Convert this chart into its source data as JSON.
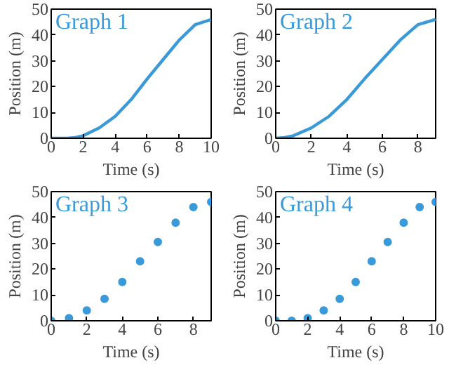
{
  "chart_data": [
    {
      "type": "line",
      "title": "Graph 1",
      "xlabel": "Time (s)",
      "ylabel": "Position (m)",
      "x": [
        0,
        1,
        1.5,
        2,
        3,
        4,
        5,
        6,
        7,
        8,
        9,
        10
      ],
      "series": [
        {
          "color": "#3a9ad9",
          "values": [
            0,
            0,
            0.3,
            1,
            4,
            8.5,
            15,
            23,
            30.5,
            38,
            44,
            46
          ]
        }
      ],
      "xlim": [
        0,
        10
      ],
      "ylim": [
        0,
        50
      ],
      "xticks": [
        0,
        2,
        4,
        6,
        8,
        10
      ],
      "yticks": [
        0,
        10,
        20,
        30,
        40,
        50
      ],
      "grid": false
    },
    {
      "type": "line",
      "title": "Graph 2",
      "xlabel": "Time (s)",
      "ylabel": "Position (m)",
      "x": [
        0,
        0.5,
        1,
        2,
        3,
        4,
        5,
        6,
        7,
        8,
        9
      ],
      "series": [
        {
          "color": "#3a9ad9",
          "values": [
            0,
            0.3,
            1,
            4,
            8.5,
            15,
            23,
            30.5,
            38,
            44,
            46
          ]
        }
      ],
      "xlim": [
        0,
        9
      ],
      "ylim": [
        0,
        50
      ],
      "xticks": [
        0,
        2,
        4,
        6,
        8
      ],
      "yticks": [
        0,
        10,
        20,
        30,
        40,
        50
      ],
      "grid": false
    },
    {
      "type": "scatter",
      "title": "Graph 3",
      "xlabel": "Time (s)",
      "ylabel": "Position (m)",
      "x": [
        0,
        1,
        2,
        3,
        4,
        5,
        6,
        7,
        8,
        9
      ],
      "series": [
        {
          "color": "#3a9ad9",
          "values": [
            0,
            1,
            4,
            8.5,
            15,
            23,
            30.5,
            38,
            44,
            46
          ]
        }
      ],
      "marker": "circle",
      "xlim": [
        0,
        9
      ],
      "ylim": [
        0,
        50
      ],
      "xticks": [
        0,
        2,
        4,
        6,
        8
      ],
      "yticks": [
        0,
        10,
        20,
        30,
        40,
        50
      ],
      "grid": false
    },
    {
      "type": "scatter",
      "title": "Graph 4",
      "xlabel": "Time (s)",
      "ylabel": "Position (m)",
      "x": [
        0,
        1,
        2,
        3,
        4,
        5,
        6,
        7,
        8,
        9,
        10
      ],
      "series": [
        {
          "color": "#3a9ad9",
          "values": [
            0,
            0,
            1,
            4,
            8.5,
            15,
            23,
            30.5,
            38,
            44,
            46
          ]
        }
      ],
      "marker": "circle",
      "xlim": [
        0,
        10
      ],
      "ylim": [
        0,
        50
      ],
      "xticks": [
        0,
        2,
        4,
        6,
        8,
        10
      ],
      "yticks": [
        0,
        10,
        20,
        30,
        40,
        50
      ],
      "grid": false
    }
  ]
}
